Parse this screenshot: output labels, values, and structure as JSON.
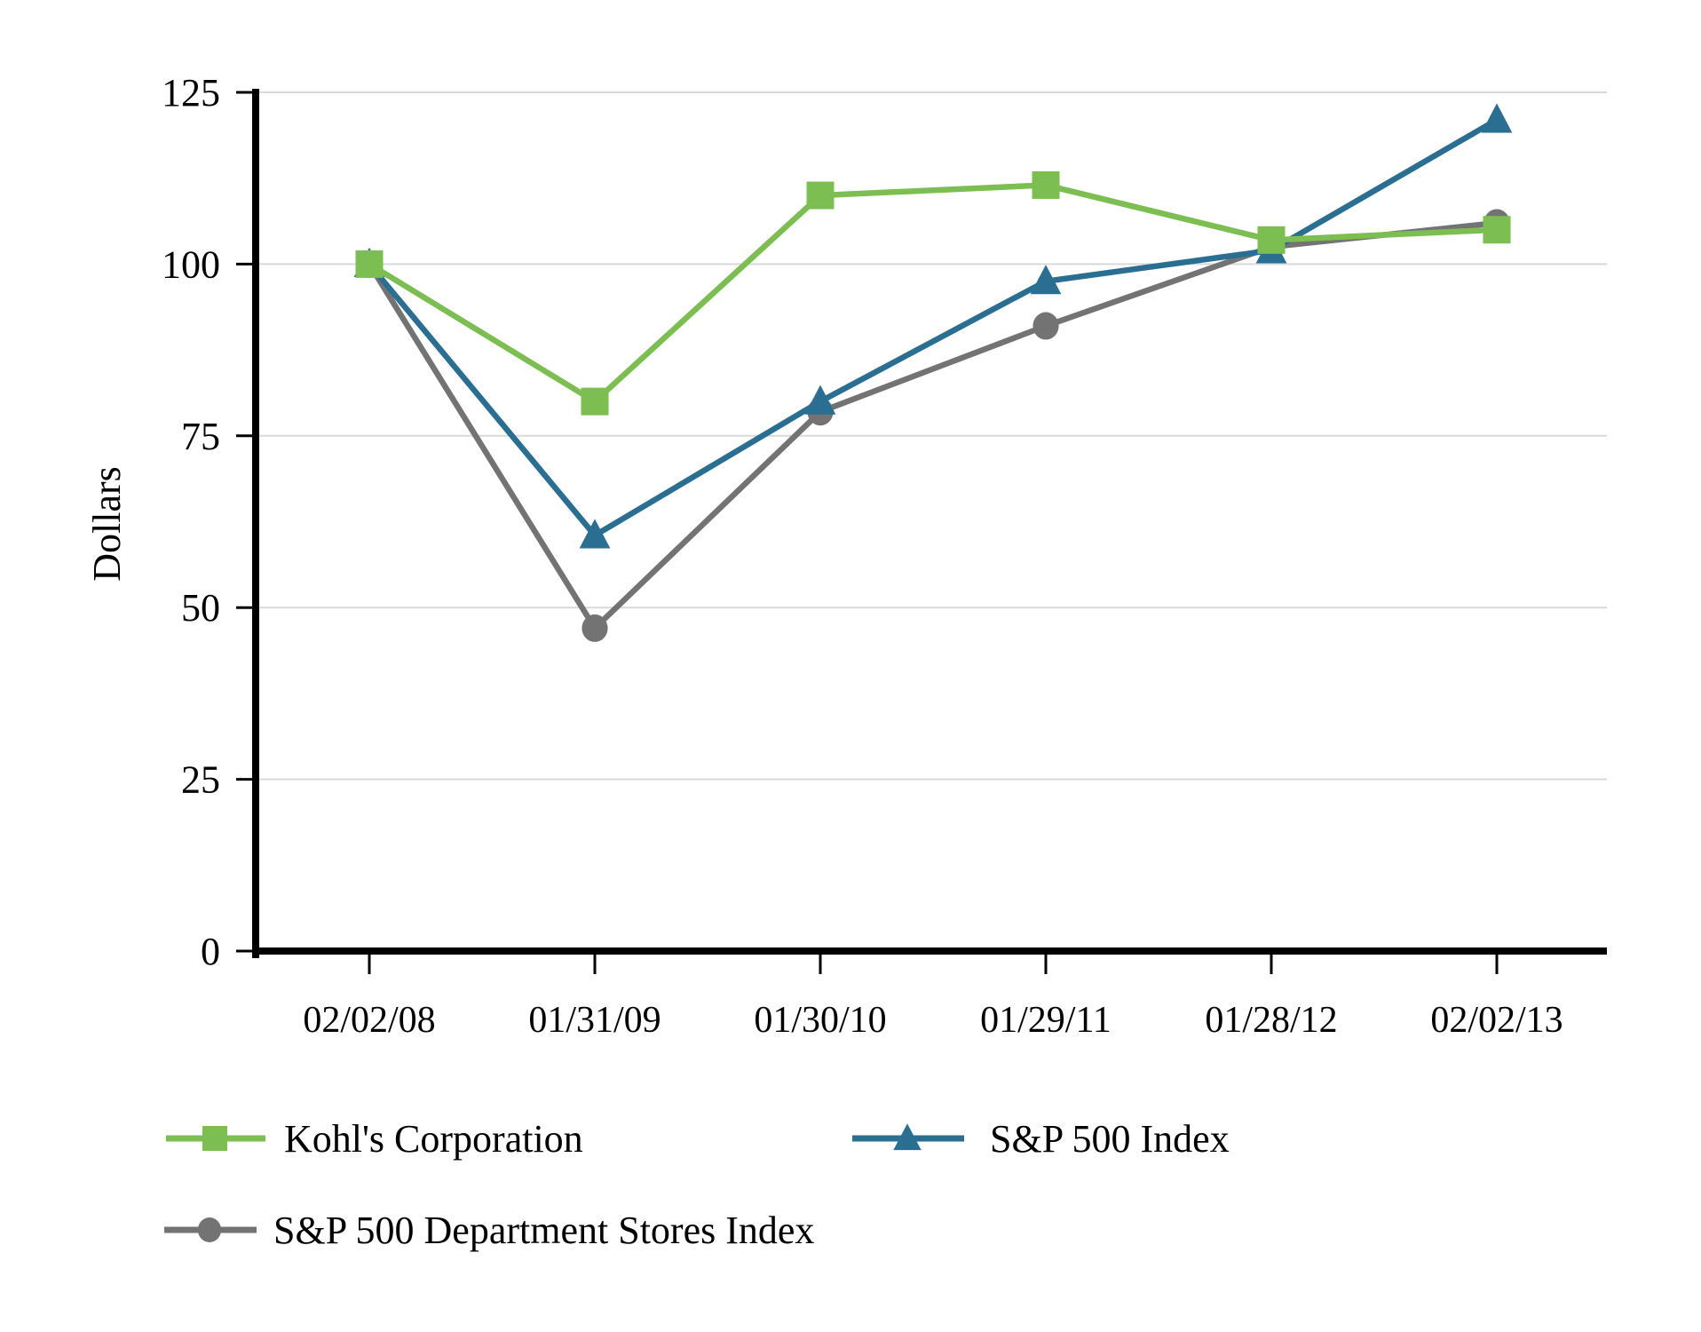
{
  "figure": {
    "background": "#ffffff",
    "axis_color": "#000000",
    "gridline_color": "#d9d9d9"
  },
  "chart_data": {
    "type": "line",
    "title": "",
    "xlabel": "",
    "ylabel": "Dollars",
    "ylim": [
      0,
      125
    ],
    "yticks": [
      0,
      25,
      50,
      75,
      100,
      125
    ],
    "grid": true,
    "legend_position": "bottom-left",
    "categories": [
      "02/02/08",
      "01/31/09",
      "01/30/10",
      "01/29/11",
      "01/28/12",
      "02/02/13"
    ],
    "series": [
      {
        "name": "Kohl's Corporation",
        "marker": "square",
        "color": "#7cbe52",
        "values": [
          100,
          80,
          110,
          111.5,
          103.5,
          105
        ]
      },
      {
        "name": "S&P 500 Index",
        "marker": "triangle",
        "color": "#2a6f91",
        "values": [
          100,
          60.5,
          80,
          97.5,
          102,
          121
        ]
      },
      {
        "name": "S&P 500 Department Stores Index",
        "marker": "circle",
        "color": "#737373",
        "values": [
          100,
          47,
          78.5,
          91,
          102.5,
          106
        ]
      }
    ]
  }
}
